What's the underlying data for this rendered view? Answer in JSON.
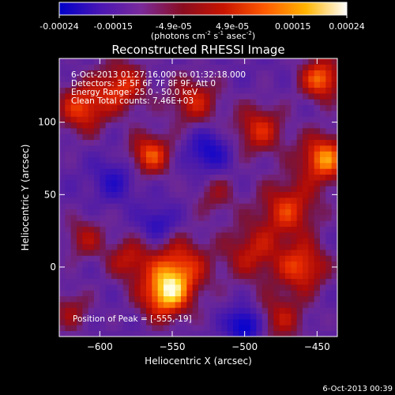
{
  "colorbar": {
    "tick_labels": [
      "-0.00024",
      "-0.00015",
      "-4.9e-05",
      "4.9e-05",
      "0.00015",
      "0.00024"
    ],
    "tick_values": [
      -0.00024,
      -0.00015,
      -4.9e-05,
      4.9e-05,
      0.00015,
      0.00024
    ],
    "range": [
      -0.00024,
      0.00024
    ],
    "units_prefix": "(photons cm",
    "units_exp1": "-2",
    "units_mid": " s",
    "units_exp2": "-1",
    "units_mid2": " asec",
    "units_exp3": "-2",
    "units_suffix": ")",
    "colormap": [
      "#0000c8",
      "#4a16b4",
      "#7a2a9a",
      "#8a0c20",
      "#c81400",
      "#ff5a00",
      "#ffb400",
      "#ffffff"
    ]
  },
  "chart_data": {
    "type": "heatmap",
    "title": "Reconstructed RHESSI Image",
    "xlabel": "Heliocentric X (arcsec)",
    "ylabel": "Heliocentric Y (arcsec)",
    "xlim": [
      -628,
      -436
    ],
    "ylim": [
      -48,
      144
    ],
    "x_ticks": [
      -600,
      -550,
      -500,
      -450
    ],
    "y_ticks": [
      0,
      50,
      100
    ],
    "annotations": [
      "6-Oct-2013 01:27:16.000 to 01:32:18.000",
      "Detectors: 3F 5F 6F 7F 8F 9F, Att 0",
      "Energy Range: 25.0 - 50.0 keV",
      "Clean     Total counts: 7.46E+03"
    ],
    "peak_label": "Position of Peak = [-555,-19]",
    "peak_position": [
      -555,
      -19
    ],
    "sources": [
      {
        "x": -555,
        "y": -19,
        "amp": 1.0,
        "sigma": 12
      },
      {
        "x": -545,
        "y": 0,
        "amp": 0.75,
        "sigma": 14
      },
      {
        "x": -580,
        "y": 5,
        "amp": 0.55,
        "sigma": 10
      },
      {
        "x": -612,
        "y": 110,
        "amp": 0.75,
        "sigma": 12
      },
      {
        "x": -585,
        "y": 125,
        "amp": 0.7,
        "sigma": 12
      },
      {
        "x": -565,
        "y": 78,
        "amp": 0.8,
        "sigma": 10
      },
      {
        "x": -535,
        "y": 115,
        "amp": 0.6,
        "sigma": 12
      },
      {
        "x": -490,
        "y": 95,
        "amp": 0.65,
        "sigma": 12
      },
      {
        "x": -447,
        "y": 130,
        "amp": 0.9,
        "sigma": 10
      },
      {
        "x": -445,
        "y": 75,
        "amp": 0.95,
        "sigma": 12
      },
      {
        "x": -470,
        "y": 40,
        "amp": 0.7,
        "sigma": 14
      },
      {
        "x": -460,
        "y": 0,
        "amp": 0.75,
        "sigma": 12
      },
      {
        "x": -495,
        "y": 10,
        "amp": 0.55,
        "sigma": 14
      },
      {
        "x": -475,
        "y": -35,
        "amp": 0.5,
        "sigma": 12
      },
      {
        "x": -610,
        "y": 20,
        "amp": 0.45,
        "sigma": 10
      },
      {
        "x": -620,
        "y": -30,
        "amp": 0.4,
        "sigma": 10
      },
      {
        "x": -520,
        "y": 50,
        "amp": 0.35,
        "sigma": 10
      },
      {
        "x": -500,
        "y": -40,
        "amp": -0.8,
        "sigma": 8
      },
      {
        "x": -525,
        "y": 80,
        "amp": -0.55,
        "sigma": 10
      },
      {
        "x": -560,
        "y": 30,
        "amp": -0.45,
        "sigma": 8
      },
      {
        "x": -590,
        "y": 60,
        "amp": -0.4,
        "sigma": 10
      }
    ]
  },
  "timestamp": "6-Oct-2013 00:39"
}
